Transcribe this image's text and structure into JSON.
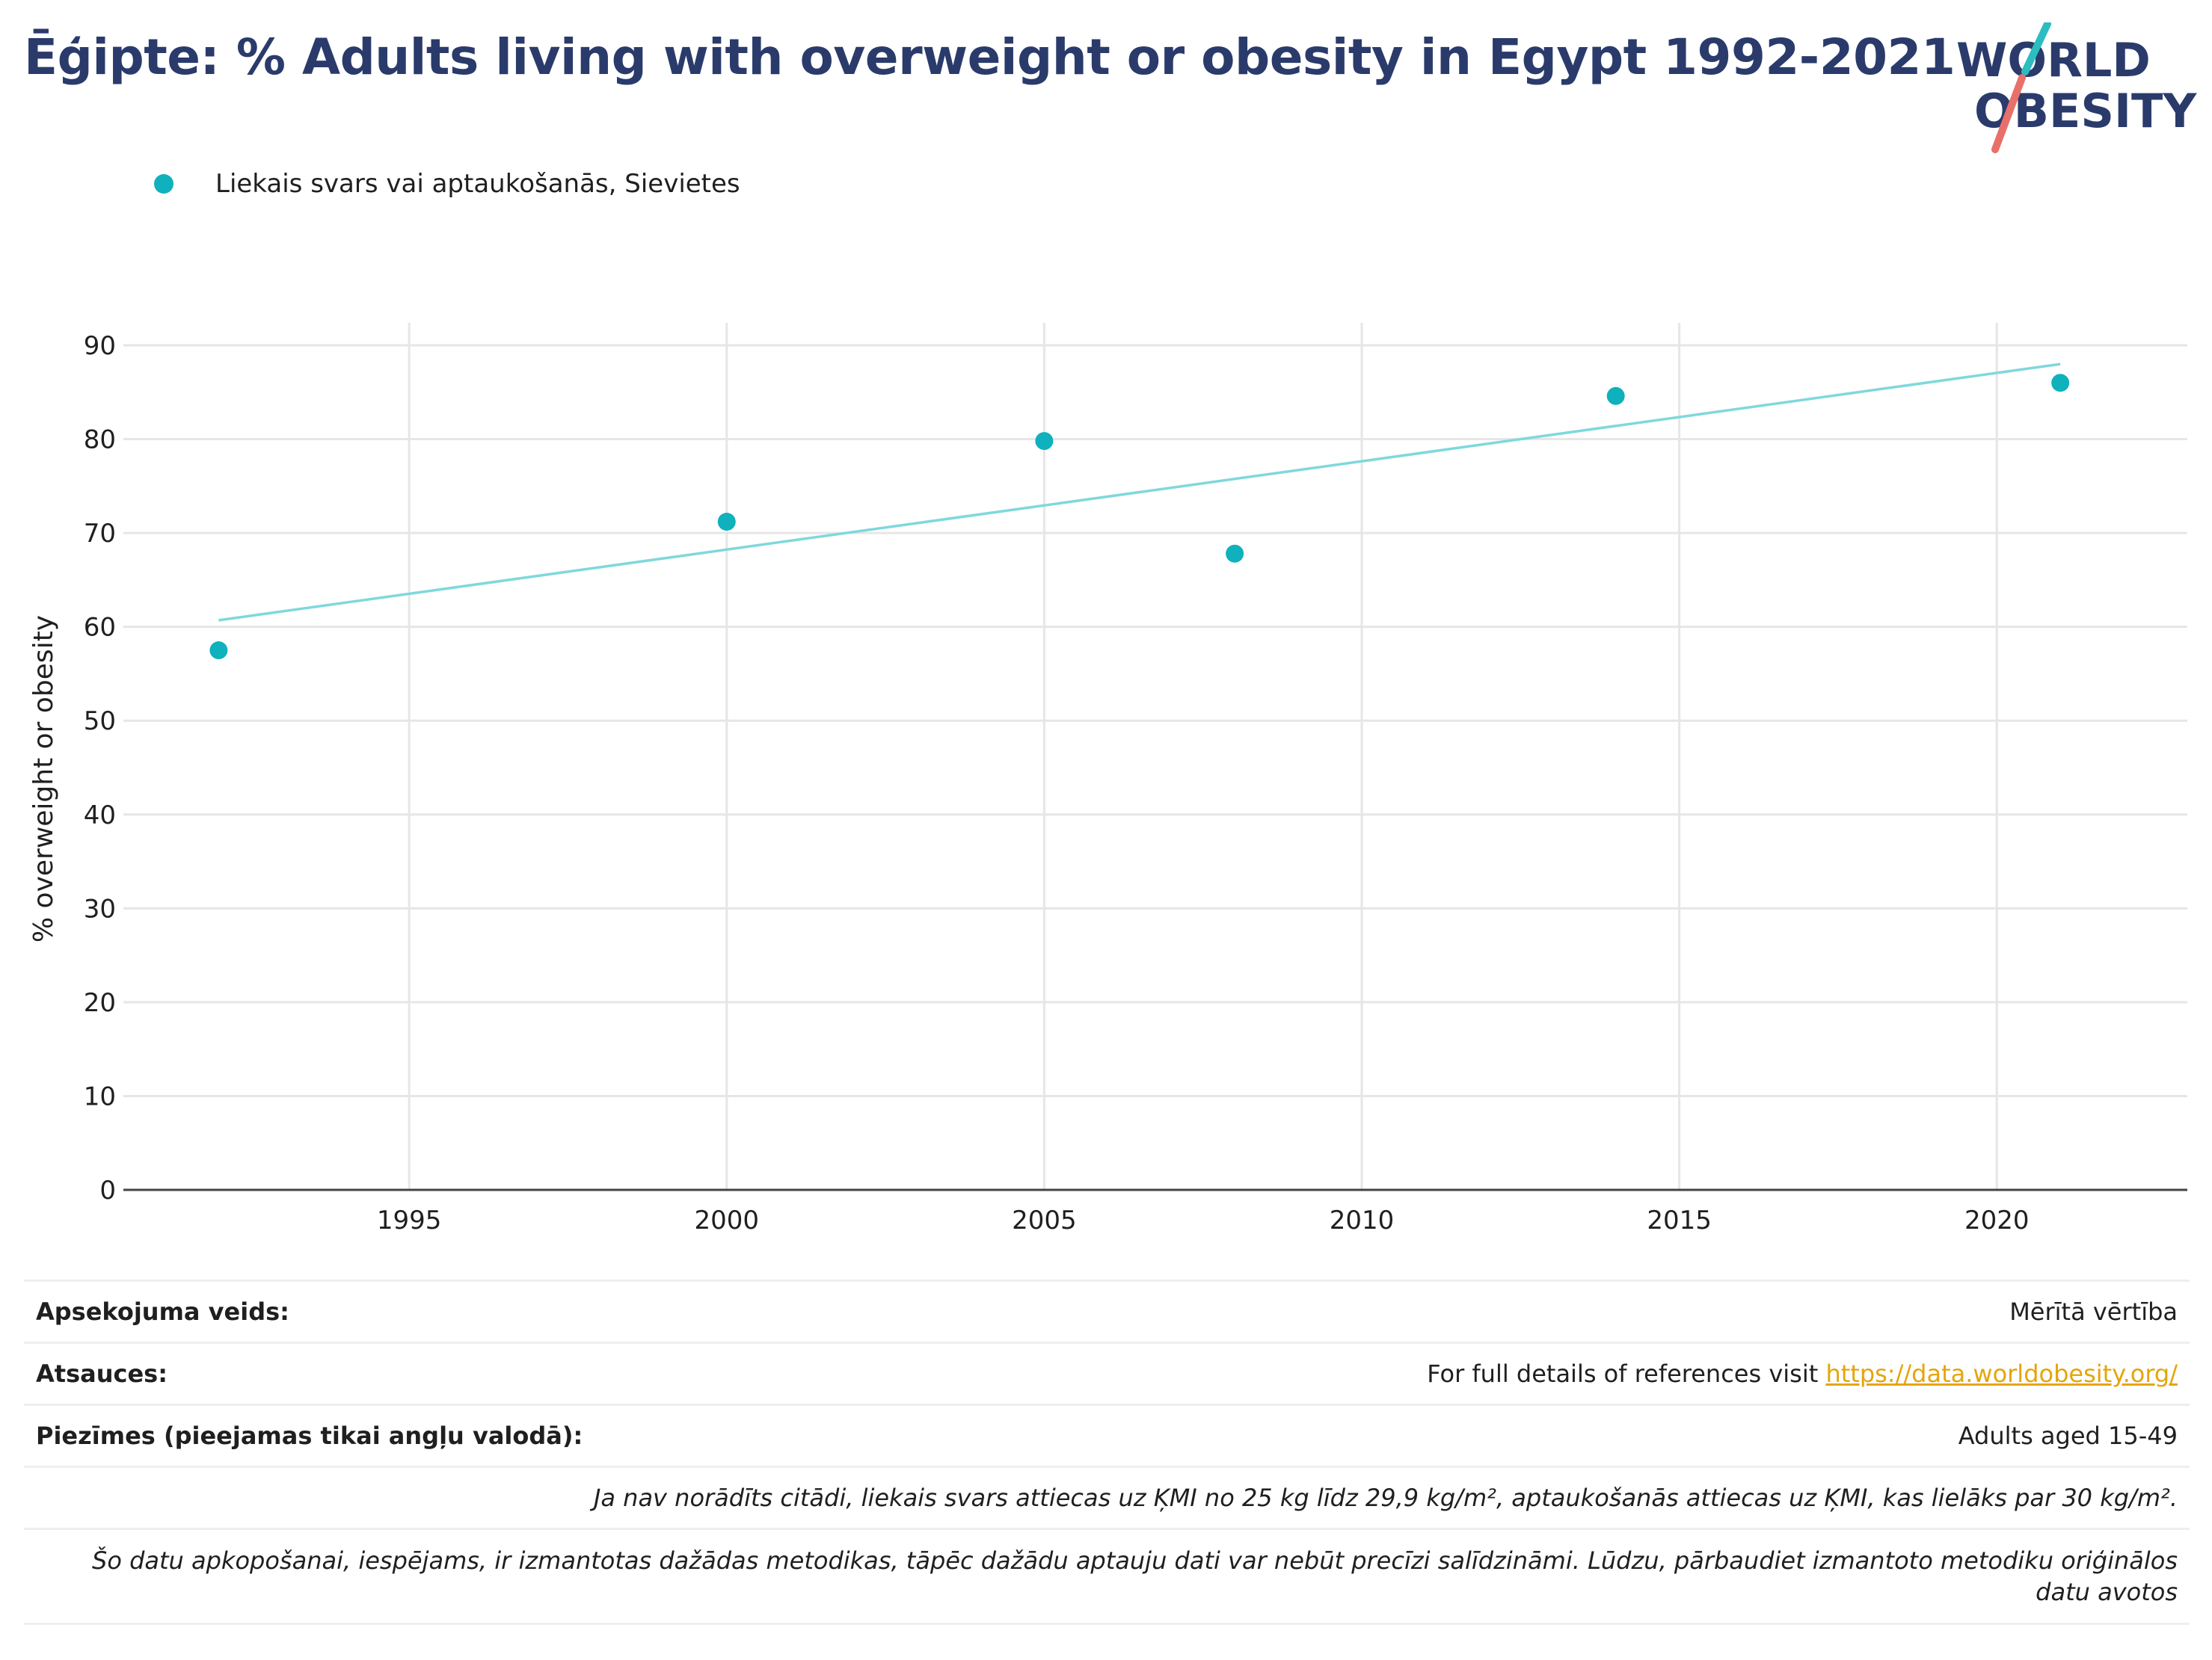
{
  "header": {
    "title": "Ēģipte: % Adults living with overweight or obesity in Egypt 1992-2021",
    "logo_line1": "WORLD",
    "logo_line2": "OBESITY"
  },
  "legend": {
    "label": "Liekais svars vai aptaukošanās, Sievietes"
  },
  "colors": {
    "series": "#0fb1bc",
    "trend": "#7fd8dc",
    "title": "#2a3b6b",
    "grid": "#e6e6e6",
    "link": "#e5a50a",
    "logo_teal": "#2bbdbf",
    "logo_red": "#e8706a"
  },
  "chart_data": {
    "type": "scatter",
    "title": "Ēģipte: % Adults living with overweight or obesity in Egypt 1992-2021",
    "ylabel": "% overweight or obesity",
    "xlabel": "",
    "xlim": [
      1990.5,
      2023
    ],
    "ylim": [
      0,
      90
    ],
    "x_ticks": [
      1995,
      2000,
      2005,
      2010,
      2015,
      2020
    ],
    "y_ticks": [
      0,
      10,
      20,
      30,
      40,
      50,
      60,
      70,
      80,
      90
    ],
    "grid": true,
    "legend_position": "top-left",
    "series": [
      {
        "name": "Liekais svars vai aptaukošanās, Sievietes",
        "points": [
          {
            "x": 1992,
            "y": 57.5
          },
          {
            "x": 2000,
            "y": 71.2
          },
          {
            "x": 2005,
            "y": 79.8
          },
          {
            "x": 2008,
            "y": 67.8
          },
          {
            "x": 2014,
            "y": 84.6
          },
          {
            "x": 2021,
            "y": 86.0
          }
        ]
      }
    ],
    "trendline": {
      "start": {
        "x": 1992,
        "y": 60.7
      },
      "end": {
        "x": 2021,
        "y": 88.0
      }
    }
  },
  "footer": {
    "survey_label": "Apsekojuma veids:",
    "survey_value": "Mērītā vērtība",
    "refs_label": "Atsauces:",
    "refs_text": "For full details of references visit ",
    "refs_link": "https://data.worldobesity.org/",
    "notes_label": "Piezīmes (pieejamas tikai angļu valodā):",
    "notes_value": "Adults aged 15-49",
    "note_bmi": "Ja nav norādīts citādi, liekais svars attiecas uz ĶMI no 25 kg līdz 29,9 kg/m², aptaukošanās attiecas uz ĶMI, kas lielāks par 30 kg/m².",
    "note_methods": "Šo datu apkopošanai, iespējams, ir izmantotas dažādas metodikas, tāpēc dažādu aptauju dati var nebūt precīzi salīdzināmi. Lūdzu, pārbaudiet izmantoto metodiku oriģinālos datu avotos"
  }
}
